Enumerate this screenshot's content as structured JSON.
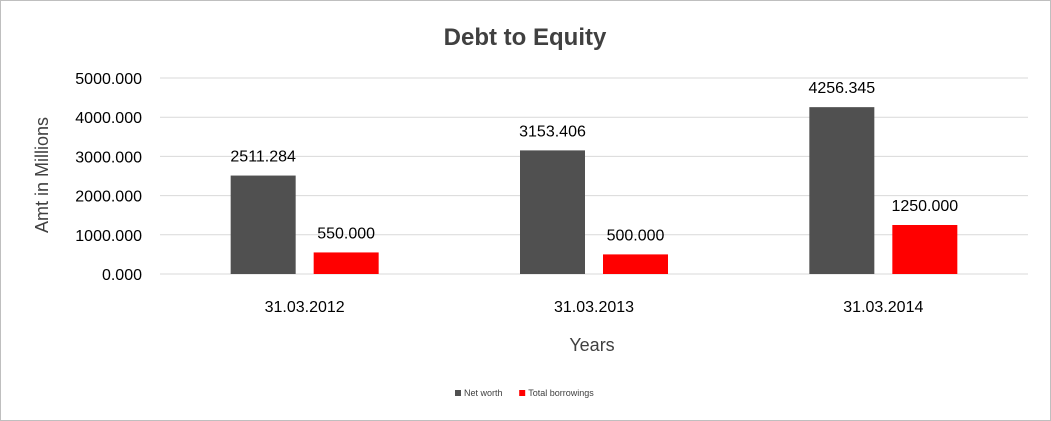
{
  "chart_data": {
    "type": "bar",
    "title": "Debt to Equity",
    "xlabel": "Years",
    "ylabel": "Amt in Millions",
    "categories": [
      "31.03.2012",
      "31.03.2013",
      "31.03.2014"
    ],
    "series": [
      {
        "name": "Net worth",
        "color": "#505050",
        "values": [
          2511.284,
          3153.406,
          4256.345
        ],
        "labels": [
          "2511.284",
          "3153.406",
          "4256.345"
        ]
      },
      {
        "name": "Total borrowings",
        "color": "#ff0000",
        "values": [
          550.0,
          500.0,
          1250.0
        ],
        "labels": [
          "550.000",
          "500.000",
          "1250.000"
        ]
      }
    ],
    "ylim": [
      0,
      5000
    ],
    "yticks": [
      0,
      1000,
      2000,
      3000,
      4000,
      5000
    ],
    "ytick_labels": [
      "0.000",
      "1000.000",
      "2000.000",
      "3000.000",
      "4000.000",
      "5000.000"
    ],
    "grid": true,
    "legend_position": "bottom"
  }
}
